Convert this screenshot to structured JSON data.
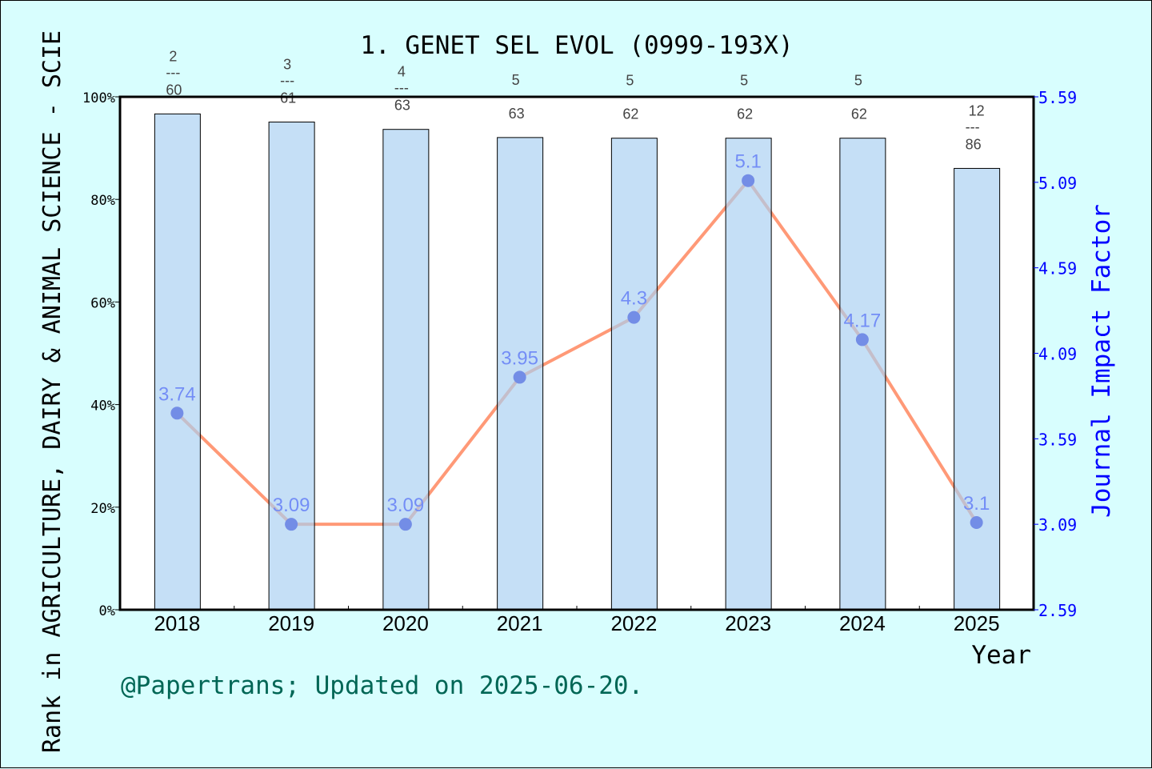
{
  "chart_data": {
    "type": "bar+line",
    "title": "1. GENET SEL EVOL (0999-193X)",
    "xlabel": "Year",
    "ylabel_left": "Rank in AGRICULTURE, DAIRY & ANIMAL SCIENCE - SCIE",
    "ylabel_right": "Journal Impact Factor",
    "categories": [
      "2018",
      "2019",
      "2020",
      "2021",
      "2022",
      "2023",
      "2024",
      "2025"
    ],
    "ranks": [
      {
        "rank": "2",
        "total": "60"
      },
      {
        "rank": "3",
        "total": "61"
      },
      {
        "rank": "4",
        "total": "63"
      },
      {
        "rank": "5",
        "total": "63"
      },
      {
        "rank": "5",
        "total": "62"
      },
      {
        "rank": "5",
        "total": "62"
      },
      {
        "rank": "5",
        "total": "62"
      },
      {
        "rank": "12",
        "total": "86"
      }
    ],
    "rank_separator": "---",
    "impact_factor": [
      3.74,
      3.09,
      3.09,
      3.95,
      4.3,
      5.1,
      4.17,
      3.1
    ],
    "impact_factor_labels": [
      "3.74",
      "3.09",
      "3.09",
      "3.95",
      "4.3",
      "5.1",
      "4.17",
      "3.1"
    ],
    "ylim_left": [
      0,
      100
    ],
    "yticks_left": [
      "0%",
      "20%",
      "40%",
      "60%",
      "80%",
      "100%"
    ],
    "ylim_right": [
      2.59,
      5.59
    ],
    "yticks_right": [
      "2.59",
      "3.09",
      "3.59",
      "4.09",
      "4.59",
      "5.09",
      "5.59"
    ],
    "grid": false,
    "colors": {
      "bar": "#c5e0f7",
      "line": "#ff9977",
      "point": "#0000cc",
      "if_label": "#0000ff",
      "right_axis": "#0000ff",
      "footer": "#006655",
      "background": "#d8fefe"
    }
  },
  "footer": "@Papertrans; Updated on 2025-06-20."
}
